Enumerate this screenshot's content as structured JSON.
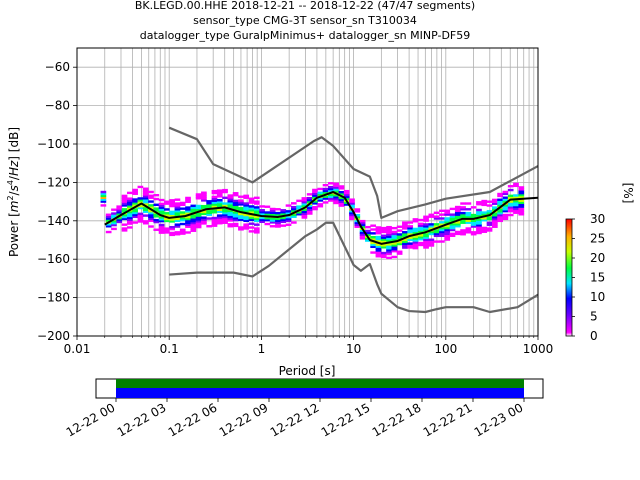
{
  "chart_data": {
    "type": "line",
    "title_lines": [
      "BK.LEGD.00.HHE   2018-12-21 -- 2018-12-22  (47/47 segments)",
      "sensor_type CMG-3T sensor_sn T310034",
      "datalogger_type GuralpMinimus+ datalogger_sn MINP-DF59"
    ],
    "xlabel": "Period [s]",
    "ylabel_parts": [
      "Power [",
      "m",
      "2",
      "/",
      "s",
      "4",
      "/",
      "Hz",
      "] [dB]"
    ],
    "xscale": "log",
    "xlim": [
      0.01,
      1000
    ],
    "ylim": [
      -200,
      -50
    ],
    "x_ticks": [
      0.01,
      0.1,
      1,
      10,
      100,
      1000
    ],
    "x_tick_labels": [
      "0.01",
      "0.1",
      "1",
      "10",
      "100",
      "1000"
    ],
    "y_ticks": [
      -200,
      -180,
      -160,
      -140,
      -120,
      -100,
      -80,
      -60
    ],
    "y_tick_labels": [
      "−200",
      "−180",
      "−160",
      "−140",
      "−120",
      "−100",
      "−80",
      "−60"
    ],
    "grid": true,
    "series": [
      {
        "name": "",
        "color": "#666666",
        "x": [
          0.1,
          0.2,
          0.3,
          0.8,
          3.7,
          4.5,
          6,
          10,
          15,
          18,
          20,
          30,
          60,
          100,
          300,
          1000
        ],
        "y": [
          -91.5,
          -97.5,
          -110.5,
          -120,
          -98.5,
          -96.5,
          -101,
          -113,
          -117,
          -127,
          -138.5,
          -135,
          -131.5,
          -128.5,
          -125,
          -111.5
        ]
      },
      {
        "name": "",
        "color": "#666666",
        "x": [
          0.1,
          0.2,
          0.5,
          0.8,
          1.2,
          3,
          4,
          5,
          6,
          10,
          12,
          15,
          18,
          20,
          30,
          40,
          60,
          80,
          100,
          200,
          300,
          600,
          1000
        ],
        "y": [
          -168,
          -167,
          -167,
          -169,
          -163.5,
          -148,
          -144.5,
          -141,
          -141,
          -163,
          -166,
          -162.5,
          -173,
          -178,
          -185,
          -187,
          -187.5,
          -186,
          -185,
          -185,
          -187.5,
          -185,
          -178.5
        ]
      },
      {
        "name": "",
        "color": "#000000",
        "x": [
          0.02,
          0.03,
          0.05,
          0.08,
          0.1,
          0.15,
          0.25,
          0.4,
          0.6,
          1,
          1.5,
          2,
          3,
          4,
          6,
          8,
          10,
          12,
          15,
          20,
          30,
          40,
          60,
          100,
          150,
          200,
          300,
          500,
          1000
        ],
        "y": [
          -142,
          -137,
          -131,
          -137,
          -138.5,
          -137.5,
          -134,
          -133,
          -135.5,
          -137.5,
          -138,
          -137,
          -133,
          -128,
          -125,
          -128,
          -135.5,
          -143,
          -150,
          -152,
          -150.5,
          -148,
          -146,
          -142,
          -139,
          -139,
          -137,
          -129,
          -128
        ]
      }
    ],
    "colorbar": {
      "label": "[%]",
      "min": 0,
      "max": 30,
      "tick_labels": [
        "0",
        "5",
        "10",
        "15",
        "20",
        "25",
        "30"
      ]
    },
    "timeline": {
      "tick_labels": [
        "12-22 00",
        "12-22 03",
        "12-22 06",
        "12-22 09",
        "12-22 12",
        "12-22 15",
        "12-22 18",
        "12-22 21",
        "12-23 00"
      ],
      "bar_colors": [
        "#008000",
        "#0000ff"
      ]
    },
    "colors": {
      "noise_model": "#666666",
      "mode": "#000000",
      "grid": "#b0b0b0"
    }
  }
}
